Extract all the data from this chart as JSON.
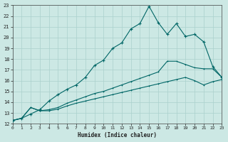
{
  "xlabel": "Humidex (Indice chaleur)",
  "xlim": [
    0,
    23
  ],
  "ylim": [
    12,
    23
  ],
  "xticks": [
    0,
    1,
    2,
    3,
    4,
    5,
    6,
    7,
    8,
    9,
    10,
    11,
    12,
    13,
    14,
    15,
    16,
    17,
    18,
    19,
    20,
    21,
    22,
    23
  ],
  "yticks": [
    12,
    13,
    14,
    15,
    16,
    17,
    18,
    19,
    20,
    21,
    22,
    23
  ],
  "bg_color": "#cce8e4",
  "line_color": "#006666",
  "grid_color": "#aad0cc",
  "line1_x": [
    0,
    1,
    2,
    3,
    4,
    5,
    6,
    7,
    8,
    9,
    10,
    11,
    12,
    13,
    14,
    15,
    16,
    17,
    18,
    19,
    20,
    21,
    22,
    23
  ],
  "line1_y": [
    12.3,
    12.5,
    12.9,
    13.3,
    14.1,
    14.7,
    15.2,
    15.6,
    16.3,
    17.4,
    17.9,
    19.0,
    19.5,
    20.8,
    21.3,
    22.9,
    21.4,
    20.3,
    21.3,
    20.1,
    20.3,
    19.6,
    17.3,
    16.3
  ],
  "line2_x": [
    0,
    1,
    2,
    3,
    4,
    5,
    6,
    7,
    8,
    9,
    10,
    11,
    12,
    13,
    14,
    15,
    16,
    17,
    18,
    19,
    20,
    21,
    22,
    23
  ],
  "line2_y": [
    12.3,
    12.5,
    13.5,
    13.2,
    13.3,
    13.5,
    13.9,
    14.2,
    14.5,
    14.8,
    15.0,
    15.3,
    15.6,
    15.9,
    16.2,
    16.5,
    16.8,
    17.8,
    17.8,
    17.5,
    17.2,
    17.1,
    17.1,
    16.3
  ],
  "line3_x": [
    0,
    1,
    2,
    3,
    4,
    5,
    6,
    7,
    8,
    9,
    10,
    11,
    12,
    13,
    14,
    15,
    16,
    17,
    18,
    19,
    20,
    21,
    22,
    23
  ],
  "line3_y": [
    12.3,
    12.5,
    13.5,
    13.2,
    13.2,
    13.35,
    13.65,
    13.9,
    14.1,
    14.3,
    14.5,
    14.7,
    14.9,
    15.1,
    15.3,
    15.5,
    15.7,
    15.9,
    16.1,
    16.3,
    16.0,
    15.6,
    15.9,
    16.1
  ]
}
